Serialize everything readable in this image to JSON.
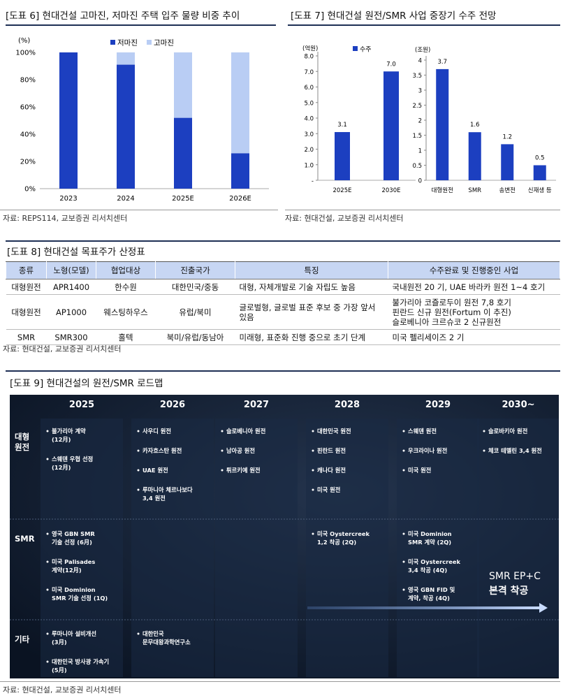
{
  "chart_data": [
    {
      "type": "stacked-bar",
      "title": "[도표 6] 현대건설 고마진, 저마진 주택 입주 물량 비중 추이",
      "unit_label": "(%)",
      "categories": [
        "2023",
        "2024",
        "2025E",
        "2026E"
      ],
      "series": [
        {
          "name": "저마진",
          "color": "#1c3fc0",
          "values": [
            100,
            91,
            52,
            26
          ]
        },
        {
          "name": "고마진",
          "color": "#b9cdf4",
          "values": [
            0,
            9,
            48,
            74
          ]
        }
      ],
      "ylim": [
        0,
        100
      ],
      "yticks": [
        {
          "value": 0,
          "label": "0%"
        },
        {
          "value": 20,
          "label": "20%"
        },
        {
          "value": 40,
          "label": "40%"
        },
        {
          "value": 60,
          "label": "60%"
        },
        {
          "value": 80,
          "label": "80%"
        },
        {
          "value": 100,
          "label": "100%"
        }
      ],
      "source": "자료: REPS114, 교보증권 리서치센터"
    },
    {
      "type": "bar",
      "title": "[도표 7] 현대건설 원전/SMR 사업 중장기 수주 전망",
      "unit_label": "(억원)",
      "categories": [
        "2025E",
        "2030E"
      ],
      "series": [
        {
          "name": "수주",
          "color": "#1c3fc0",
          "values": [
            3.1,
            7
          ],
          "value_labels": [
            "3.1",
            "7.0"
          ]
        }
      ],
      "ylim": [
        0,
        8
      ],
      "yticks": [
        {
          "value": 0,
          "label": "-"
        },
        {
          "value": 1,
          "label": "1.0"
        },
        {
          "value": 2,
          "label": "2.0"
        },
        {
          "value": 3,
          "label": "3.0"
        },
        {
          "value": 4,
          "label": "4.0"
        },
        {
          "value": 5,
          "label": "5.0"
        },
        {
          "value": 6,
          "label": "6.0"
        },
        {
          "value": 7,
          "label": "7.0"
        },
        {
          "value": 8,
          "label": "8.0"
        }
      ],
      "source": "자료: 현대건설, 교보증권 리서치센터"
    },
    {
      "type": "bar",
      "unit_label": "(조원)",
      "categories": [
        "대형원전",
        "SMR",
        "송변전",
        "신재생 등"
      ],
      "values": [
        3.7,
        1.6,
        1.2,
        0.5
      ],
      "color": "#1c3fc0",
      "ylim": [
        0,
        4
      ],
      "yticks": [
        0,
        0.5,
        1,
        1.5,
        2,
        2.5,
        3,
        3.5,
        4
      ]
    }
  ],
  "table": {
    "title": "[도표 8] 현대건설 목표주가 산정표",
    "header": [
      "종류",
      "노형(모델)",
      "협업대상",
      "진출국가",
      "특징",
      "수주완료 및 진행중인 사업"
    ],
    "rows": [
      [
        [
          "대형원전"
        ],
        [
          "APR1400"
        ],
        [
          "한수원"
        ],
        [
          "대한민국/중동"
        ],
        [
          "대형, 자체개발로 기술 자립도 높음"
        ],
        [
          "국내원전 20 기, UAE 바라카 원전 1~4 호기"
        ]
      ],
      [
        [
          "대형원전"
        ],
        [
          "AP1000"
        ],
        [
          "웨스팅하우스"
        ],
        [
          "유럽/북미"
        ],
        [
          "글로벌형, 글로벌 표준 후보 중 가장 앞서 있음"
        ],
        [
          "불가리아 코즐로두이 원전 7,8 호기",
          "핀란드 신규 원전(Fortum 이 추진)",
          "슬로베니아 크르슈코 2 신규원전"
        ]
      ],
      [
        [
          "SMR"
        ],
        [
          "SMR300"
        ],
        [
          "홀텍"
        ],
        [
          "북미/유럽/동남아"
        ],
        [
          "미래형, 표준화 진행 중으로 초기 단계"
        ],
        [
          "미국 펠리세이즈 2 기"
        ]
      ]
    ],
    "source": "자료: 현대건설, 교보증권 리서치센터"
  },
  "roadmap": {
    "title": "[도표 9] 현대건설의 원전/SMR 로드맵",
    "years": [
      "2025",
      "2026",
      "2027",
      "2028",
      "2029",
      "2030~"
    ],
    "rows": [
      {
        "label": [
          "대형",
          "원전"
        ],
        "cells": [
          [
            [
              "불가리아 계약",
              "(12月)"
            ],
            [
              "스웨덴 우협 선정",
              "(12月)"
            ]
          ],
          [
            [
              "사우디 원전"
            ],
            [
              "카자흐스탄 원전"
            ],
            [
              "UAE 원전"
            ],
            [
              "루마니아 체르나보다",
              "3,4 원전"
            ]
          ],
          [
            [
              "슬로베니아 원전"
            ],
            [
              "남아공 원전"
            ],
            [
              "튀르키예 원전"
            ]
          ],
          [
            [
              "대한민국 원전"
            ],
            [
              "핀란드 원전"
            ],
            [
              "캐나다 원전"
            ],
            [
              "미국 원전"
            ]
          ],
          [
            [
              "스웨덴 원전"
            ],
            [
              "우크라이나 원전"
            ],
            [
              "미국 원전"
            ]
          ],
          [
            [
              "슬로바키아 원전"
            ],
            [
              "체코 테멜린 3,4 원전"
            ]
          ]
        ]
      },
      {
        "label": [
          "SMR"
        ],
        "cells": [
          [
            [
              "영국 GBN SMR",
              "기술 선정 (6月)"
            ],
            [
              "미국 Palisades",
              "계약(12月)"
            ],
            [
              "미국 Dominion",
              "SMR 기술 선정 (1Q)"
            ]
          ],
          [],
          [],
          [
            [
              "미국 Oystercreek",
              "1,2 착공 (2Q)"
            ]
          ],
          [
            [
              "미국 Dominion",
              "SMR 계약 (2Q)"
            ],
            [
              "미국 Oystercreek",
              "3,4 착공 (4Q)"
            ],
            [
              "영국 GBN FID 및",
              "계약, 착공 (4Q)"
            ]
          ],
          []
        ]
      },
      {
        "label": [
          "기타"
        ],
        "cells": [
          [
            [
              "루마니아 설비개선",
              "(3月)"
            ],
            [
              "대한민국 방사광 가속기",
              "(5月)"
            ]
          ],
          [
            [
              "대한민국",
              "문무대왕과학연구소"
            ]
          ],
          [],
          [],
          [],
          []
        ]
      }
    ],
    "banner": [
      "SMR EP+C",
      "본격 착공"
    ],
    "source": "자료: 현대건설, 교보증권 리서치센터"
  }
}
